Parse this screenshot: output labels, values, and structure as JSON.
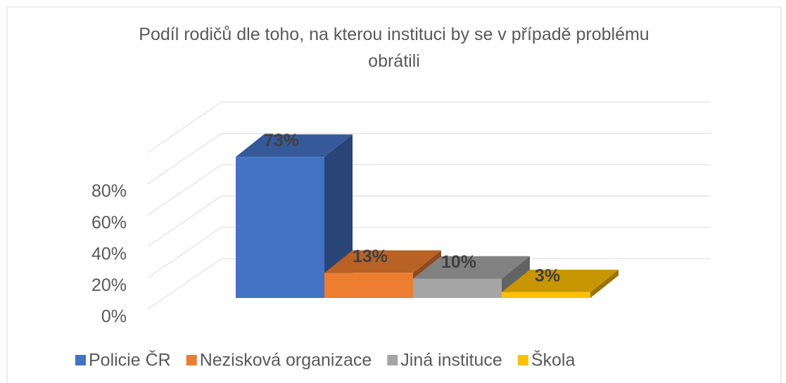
{
  "chart_data": {
    "type": "bar3d",
    "title": "Podíl rodičů dle toho, na kterou instituci by se v případě problému obrátili",
    "series": [
      {
        "name": "Policie ČR",
        "color": "#4472c4",
        "values": [
          73
        ],
        "value_labels": [
          "73%"
        ]
      },
      {
        "name": "Nezisková organizace",
        "color": "#ed7d31",
        "values": [
          13
        ],
        "value_labels": [
          "13%"
        ]
      },
      {
        "name": "Jiná instituce",
        "color": "#a5a5a5",
        "values": [
          10
        ],
        "value_labels": [
          "10%"
        ]
      },
      {
        "name": "Škola",
        "color": "#ffc000",
        "values": [
          3
        ],
        "value_labels": [
          "3%"
        ]
      }
    ],
    "ylim": [
      0,
      100
    ],
    "yticks": [
      {
        "value": 0,
        "label": "0%"
      },
      {
        "value": 20,
        "label": "20%"
      },
      {
        "value": 40,
        "label": "40%"
      },
      {
        "value": 60,
        "label": "60%"
      },
      {
        "value": 80,
        "label": "80%"
      }
    ],
    "grid": true,
    "legend": "bottom"
  }
}
